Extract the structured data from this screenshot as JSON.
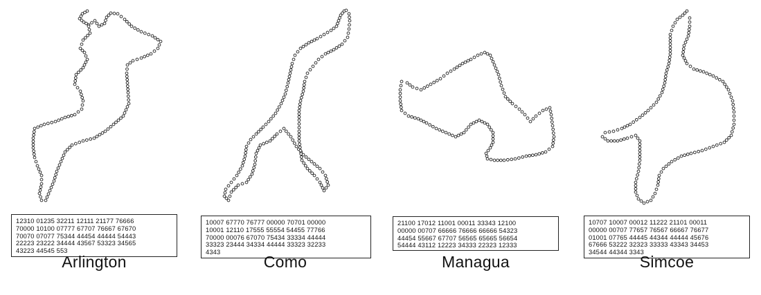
{
  "panels": [
    {
      "name": "Arlington",
      "code_lines": [
        "12310  01235  32211  12111  21177  76666",
        "70000  10100  07777  67707  76667  67670",
        "70070  07077  75344  44454  44444  54443",
        "22223  23222  34444  43567  53323  34565",
        "43223  44545  553"
      ],
      "outline": [
        [
          126,
          16
        ],
        [
          119,
          20
        ],
        [
          115,
          27
        ],
        [
          121,
          32
        ],
        [
          128,
          36
        ],
        [
          137,
          30
        ],
        [
          143,
          38
        ],
        [
          151,
          34
        ],
        [
          154,
          25
        ],
        [
          160,
          19
        ],
        [
          170,
          20
        ],
        [
          180,
          28
        ],
        [
          190,
          38
        ],
        [
          204,
          46
        ],
        [
          220,
          52
        ],
        [
          232,
          60
        ],
        [
          228,
          70
        ],
        [
          218,
          78
        ],
        [
          204,
          84
        ],
        [
          192,
          88
        ],
        [
          184,
          94
        ],
        [
          183,
          106
        ],
        [
          184,
          120
        ],
        [
          185,
          134
        ],
        [
          186,
          150
        ],
        [
          178,
          168
        ],
        [
          164,
          180
        ],
        [
          152,
          190
        ],
        [
          136,
          200
        ],
        [
          120,
          204
        ],
        [
          104,
          210
        ],
        [
          94,
          220
        ],
        [
          88,
          234
        ],
        [
          82,
          248
        ],
        [
          78,
          262
        ],
        [
          72,
          276
        ],
        [
          66,
          290
        ],
        [
          60,
          290
        ],
        [
          57,
          280
        ],
        [
          60,
          266
        ],
        [
          60,
          254
        ],
        [
          54,
          240
        ],
        [
          50,
          228
        ],
        [
          48,
          214
        ],
        [
          48,
          200
        ],
        [
          50,
          186
        ],
        [
          64,
          180
        ],
        [
          80,
          176
        ],
        [
          94,
          170
        ],
        [
          108,
          166
        ],
        [
          118,
          158
        ],
        [
          120,
          146
        ],
        [
          116,
          132
        ],
        [
          108,
          122
        ],
        [
          110,
          108
        ],
        [
          120,
          98
        ],
        [
          126,
          86
        ],
        [
          122,
          76
        ],
        [
          116,
          70
        ],
        [
          120,
          58
        ],
        [
          130,
          48
        ],
        [
          128,
          38
        ]
      ]
    },
    {
      "name": "Como",
      "code_lines": [
        "10007  67770  76777  00000  70701  00000",
        "10001  12110  17555  55554  54455  77766",
        "70000  00076  67070  75434  33334  44444",
        "33323  23444  34334  44444  33323  32233",
        "4343"
      ],
      "outline": [
        [
          497,
          16
        ],
        [
          492,
          22
        ],
        [
          489,
          30
        ],
        [
          486,
          38
        ],
        [
          478,
          44
        ],
        [
          468,
          50
        ],
        [
          458,
          56
        ],
        [
          446,
          62
        ],
        [
          434,
          70
        ],
        [
          426,
          80
        ],
        [
          422,
          92
        ],
        [
          419,
          106
        ],
        [
          416,
          120
        ],
        [
          412,
          136
        ],
        [
          406,
          150
        ],
        [
          398,
          164
        ],
        [
          388,
          176
        ],
        [
          380,
          184
        ],
        [
          370,
          194
        ],
        [
          362,
          202
        ],
        [
          356,
          212
        ],
        [
          354,
          226
        ],
        [
          350,
          240
        ],
        [
          342,
          254
        ],
        [
          334,
          264
        ],
        [
          326,
          274
        ],
        [
          324,
          284
        ],
        [
          330,
          290
        ],
        [
          334,
          278
        ],
        [
          344,
          268
        ],
        [
          356,
          264
        ],
        [
          364,
          252
        ],
        [
          368,
          238
        ],
        [
          370,
          222
        ],
        [
          376,
          210
        ],
        [
          390,
          204
        ],
        [
          400,
          194
        ],
        [
          410,
          186
        ],
        [
          420,
          198
        ],
        [
          428,
          212
        ],
        [
          438,
          224
        ],
        [
          450,
          234
        ],
        [
          462,
          244
        ],
        [
          470,
          254
        ],
        [
          474,
          268
        ],
        [
          468,
          276
        ],
        [
          462,
          264
        ],
        [
          454,
          254
        ],
        [
          444,
          244
        ],
        [
          436,
          232
        ],
        [
          434,
          218
        ],
        [
          432,
          204
        ],
        [
          432,
          190
        ],
        [
          432,
          174
        ],
        [
          432,
          160
        ],
        [
          434,
          146
        ],
        [
          438,
          132
        ],
        [
          440,
          118
        ],
        [
          444,
          106
        ],
        [
          452,
          96
        ],
        [
          460,
          86
        ],
        [
          470,
          78
        ],
        [
          482,
          72
        ],
        [
          494,
          64
        ],
        [
          502,
          54
        ],
        [
          504,
          42
        ],
        [
          505,
          30
        ],
        [
          504,
          20
        ],
        [
          500,
          15
        ]
      ]
    },
    {
      "name": "Managua",
      "code_lines": [
        "21100  17012  11001  00011  33343  12100",
        "00000  00707  66666  76666  66666  54323",
        "44454  55667  67707  56565  65665  56654",
        "54444  43112  12223  34333  22323  12333"
      ],
      "outline": [
        [
          580,
          118
        ],
        [
          578,
          130
        ],
        [
          578,
          146
        ],
        [
          580,
          160
        ],
        [
          590,
          168
        ],
        [
          604,
          172
        ],
        [
          616,
          178
        ],
        [
          630,
          186
        ],
        [
          644,
          192
        ],
        [
          658,
          198
        ],
        [
          670,
          192
        ],
        [
          680,
          180
        ],
        [
          692,
          174
        ],
        [
          704,
          180
        ],
        [
          712,
          192
        ],
        [
          712,
          206
        ],
        [
          708,
          214
        ],
        [
          702,
          222
        ],
        [
          704,
          230
        ],
        [
          714,
          232
        ],
        [
          728,
          232
        ],
        [
          744,
          230
        ],
        [
          760,
          226
        ],
        [
          774,
          224
        ],
        [
          788,
          220
        ],
        [
          798,
          212
        ],
        [
          800,
          198
        ],
        [
          798,
          182
        ],
        [
          796,
          166
        ],
        [
          794,
          156
        ],
        [
          784,
          160
        ],
        [
          774,
          168
        ],
        [
          766,
          176
        ],
        [
          758,
          166
        ],
        [
          750,
          158
        ],
        [
          740,
          150
        ],
        [
          730,
          140
        ],
        [
          724,
          124
        ],
        [
          720,
          108
        ],
        [
          714,
          94
        ],
        [
          708,
          80
        ],
        [
          700,
          76
        ],
        [
          690,
          80
        ],
        [
          680,
          86
        ],
        [
          668,
          92
        ],
        [
          656,
          100
        ],
        [
          646,
          106
        ],
        [
          636,
          114
        ],
        [
          622,
          122
        ],
        [
          608,
          130
        ],
        [
          596,
          126
        ],
        [
          588,
          120
        ]
      ]
    },
    {
      "name": "Simcoe",
      "code_lines": [
        "10707  10007  00012  11222  21101  00011",
        "00000  00707  77657  76567  66667  76677",
        "01001  07765  44445  44344  44444  45676",
        "67666  53222  32323  33333  43343  34453",
        "34544  44344  3343"
      ],
      "outline": [
        [
          992,
          16
        ],
        [
          986,
          22
        ],
        [
          978,
          28
        ],
        [
          972,
          38
        ],
        [
          968,
          50
        ],
        [
          968,
          64
        ],
        [
          968,
          78
        ],
        [
          966,
          92
        ],
        [
          962,
          106
        ],
        [
          960,
          120
        ],
        [
          956,
          134
        ],
        [
          948,
          148
        ],
        [
          936,
          160
        ],
        [
          924,
          170
        ],
        [
          910,
          180
        ],
        [
          898,
          186
        ],
        [
          886,
          190
        ],
        [
          874,
          192
        ],
        [
          870,
          198
        ],
        [
          878,
          204
        ],
        [
          892,
          204
        ],
        [
          906,
          200
        ],
        [
          918,
          196
        ],
        [
          924,
          204
        ],
        [
          924,
          218
        ],
        [
          924,
          232
        ],
        [
          922,
          248
        ],
        [
          918,
          264
        ],
        [
          918,
          278
        ],
        [
          922,
          288
        ],
        [
          930,
          294
        ],
        [
          940,
          290
        ],
        [
          946,
          280
        ],
        [
          950,
          268
        ],
        [
          952,
          254
        ],
        [
          958,
          244
        ],
        [
          970,
          234
        ],
        [
          984,
          226
        ],
        [
          998,
          222
        ],
        [
          1014,
          218
        ],
        [
          1030,
          212
        ],
        [
          1046,
          206
        ],
        [
          1056,
          196
        ],
        [
          1060,
          180
        ],
        [
          1060,
          162
        ],
        [
          1058,
          146
        ],
        [
          1052,
          130
        ],
        [
          1044,
          118
        ],
        [
          1030,
          110
        ],
        [
          1016,
          104
        ],
        [
          1002,
          100
        ],
        [
          992,
          92
        ],
        [
          986,
          80
        ],
        [
          988,
          66
        ],
        [
          994,
          52
        ],
        [
          996,
          38
        ],
        [
          996,
          26
        ]
      ]
    }
  ]
}
